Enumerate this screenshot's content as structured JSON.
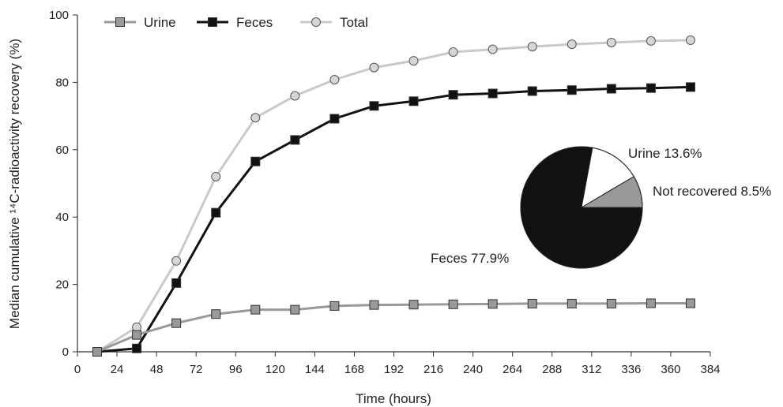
{
  "chart_data": [
    {
      "type": "line",
      "xlabel": "Time (hours)",
      "ylabel": "Median cumulative ¹⁴C-radioactivity recovery (%)",
      "xlim": [
        0,
        384
      ],
      "ylim": [
        0,
        100
      ],
      "xticks": [
        "0",
        "24",
        "48",
        "72",
        "96",
        "120",
        "144",
        "168",
        "192",
        "216",
        "240",
        "264",
        "288",
        "312",
        "336",
        "360",
        "384"
      ],
      "yticks": [
        "0",
        "20",
        "40",
        "60",
        "80",
        "100"
      ],
      "grid": false,
      "legend_position": "top-left",
      "series": [
        {
          "name": "Urine",
          "color": "#999999",
          "marker": "square",
          "x": [
            12,
            36,
            60,
            84,
            108,
            132,
            156,
            180,
            204,
            228,
            252,
            276,
            300,
            324,
            348,
            372
          ],
          "y": [
            0,
            5,
            8.5,
            11.2,
            12.5,
            12.5,
            13.6,
            13.9,
            14.0,
            14.1,
            14.2,
            14.3,
            14.3,
            14.3,
            14.4,
            14.4
          ]
        },
        {
          "name": "Feces",
          "color": "#111111",
          "marker": "square",
          "x": [
            12,
            36,
            60,
            84,
            108,
            132,
            156,
            180,
            204,
            228,
            252,
            276,
            300,
            324,
            348,
            372
          ],
          "y": [
            0,
            1,
            20.4,
            41.3,
            56.5,
            62.9,
            69.2,
            73.0,
            74.4,
            76.3,
            76.7,
            77.4,
            77.7,
            78.1,
            78.3,
            78.6
          ]
        },
        {
          "name": "Total",
          "color": "#c9c9c9",
          "marker": "circle",
          "x": [
            12,
            36,
            60,
            84,
            108,
            132,
            156,
            180,
            204,
            228,
            252,
            276,
            300,
            324,
            348,
            372
          ],
          "y": [
            0,
            7.3,
            27.0,
            52.0,
            69.5,
            76.0,
            80.8,
            84.4,
            86.4,
            89.0,
            89.8,
            90.6,
            91.3,
            91.8,
            92.3,
            92.5
          ]
        }
      ]
    },
    {
      "type": "pie",
      "slices": [
        {
          "label": "Feces 77.9%",
          "value": 77.9,
          "color": "#111111"
        },
        {
          "label": "Urine 13.6%",
          "value": 13.6,
          "color": "#ffffff"
        },
        {
          "label": "Not recovered 8.5%",
          "value": 8.5,
          "color": "#999999"
        }
      ]
    }
  ]
}
